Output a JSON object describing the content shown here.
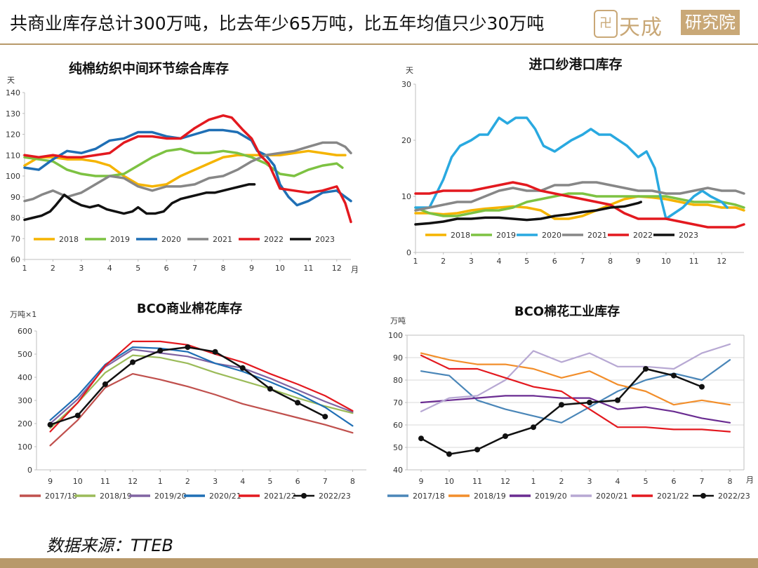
{
  "header": {
    "title": "共商业库存总计300万吨，比去年少65万吨，比五年均值只少30万吨",
    "logo_seal": "卍",
    "logo_text": "天成",
    "logo_box": "研究院"
  },
  "source": "数据来源：TTEB",
  "colors": {
    "accent": "#b8996a",
    "logo": "#c9a877"
  },
  "chart_data": [
    {
      "id": "chart1",
      "type": "line",
      "title": "纯棉纺织中间环节综合库存",
      "ylabel": "天",
      "xlabel": "月",
      "x": [
        1,
        2,
        3,
        4,
        5,
        6,
        7,
        8,
        9,
        10,
        11,
        12
      ],
      "xlim": [
        1,
        12.5
      ],
      "ylim": [
        60,
        140
      ],
      "yticks": [
        60,
        70,
        80,
        90,
        100,
        110,
        120,
        130,
        140
      ],
      "legend": "bottom",
      "series": [
        {
          "name": "2018",
          "color": "#f5b400",
          "x": [
            1,
            1.5,
            2,
            2.5,
            3,
            3.5,
            4,
            4.5,
            5,
            5.5,
            6,
            6.5,
            7,
            7.5,
            8,
            8.5,
            9,
            9.5,
            10,
            10.5,
            11,
            11.5,
            12,
            12.3
          ],
          "values": [
            105,
            109,
            109,
            108,
            108,
            107,
            105,
            100,
            96,
            95,
            96,
            100,
            103,
            106,
            109,
            110,
            110,
            110,
            110,
            111,
            112,
            111,
            110,
            110
          ]
        },
        {
          "name": "2019",
          "color": "#7dc242",
          "x": [
            1,
            1.5,
            2,
            2.5,
            3,
            3.5,
            4,
            4.5,
            5,
            5.5,
            6,
            6.5,
            7,
            7.5,
            8,
            8.5,
            9,
            9.5,
            10,
            10.5,
            11,
            11.5,
            12,
            12.2
          ],
          "values": [
            109,
            108,
            107,
            103,
            101,
            100,
            100,
            101,
            105,
            109,
            112,
            113,
            111,
            111,
            112,
            111,
            109,
            106,
            101,
            100,
            103,
            105,
            106,
            104
          ]
        },
        {
          "name": "2020",
          "color": "#1f6fb5",
          "x": [
            1,
            1.5,
            2,
            2.5,
            3,
            3.5,
            4,
            4.5,
            5,
            5.5,
            6,
            6.5,
            7,
            7.5,
            8,
            8.5,
            9,
            9.2,
            9.5,
            9.8,
            10,
            10.3,
            10.6,
            11,
            11.5,
            12,
            12.5
          ],
          "values": [
            104,
            103,
            108,
            112,
            111,
            113,
            117,
            118,
            121,
            121,
            119,
            118,
            120,
            122,
            122,
            121,
            117,
            112,
            110,
            105,
            96,
            90,
            86,
            88,
            92,
            93,
            88
          ]
        },
        {
          "name": "2021",
          "color": "#878787",
          "x": [
            1,
            1.3,
            1.6,
            2,
            2.5,
            3,
            3.5,
            4,
            4.5,
            5,
            5.5,
            6,
            6.5,
            7,
            7.5,
            8,
            8.5,
            9,
            9.5,
            10,
            10.5,
            11,
            11.5,
            12,
            12.3,
            12.5
          ],
          "values": [
            88,
            89,
            91,
            93,
            90,
            92,
            96,
            100,
            99,
            95,
            93,
            95,
            95,
            96,
            99,
            100,
            103,
            107,
            110,
            111,
            112,
            114,
            116,
            116,
            114,
            111
          ]
        },
        {
          "name": "2022",
          "color": "#e3191f",
          "x": [
            1,
            1.5,
            2,
            2.5,
            3,
            3.5,
            4,
            4.5,
            5,
            5.5,
            6,
            6.5,
            7,
            7.5,
            8,
            8.3,
            8.7,
            9,
            9.3,
            9.6,
            10,
            10.5,
            11,
            11.5,
            12,
            12.3,
            12.5
          ],
          "values": [
            110,
            109,
            110,
            109,
            109,
            110,
            111,
            116,
            119,
            119,
            118,
            118,
            123,
            127,
            129,
            128,
            122,
            118,
            110,
            106,
            94,
            93,
            92,
            93,
            95,
            87,
            78
          ]
        },
        {
          "name": "2023",
          "color": "#111111",
          "x": [
            1,
            1.3,
            1.6,
            1.9,
            2.1,
            2.4,
            2.7,
            3,
            3.3,
            3.6,
            3.9,
            4.2,
            4.5,
            4.8,
            5,
            5.3,
            5.6,
            5.9,
            6.2,
            6.5,
            6.8,
            7.1,
            7.4,
            7.7,
            8,
            8.3,
            8.6,
            8.9,
            9.1
          ],
          "values": [
            79,
            80,
            81,
            83,
            86,
            91,
            88,
            86,
            85,
            86,
            84,
            83,
            82,
            83,
            85,
            82,
            82,
            83,
            87,
            89,
            90,
            91,
            92,
            92,
            93,
            94,
            95,
            96,
            96
          ]
        }
      ]
    },
    {
      "id": "chart2",
      "type": "line",
      "title": "进口纱港口库存",
      "ylabel": "天",
      "xlabel": "",
      "x": [
        1,
        2,
        3,
        4,
        5,
        6,
        7,
        8,
        9,
        10,
        11,
        12
      ],
      "xlim": [
        1,
        12.8
      ],
      "ylim": [
        0,
        30
      ],
      "yticks": [
        0,
        10,
        20,
        30
      ],
      "legend": "bottom",
      "series": [
        {
          "name": "2018",
          "color": "#f5b400",
          "x": [
            1,
            1.5,
            2,
            2.5,
            3,
            3.5,
            4,
            4.5,
            5,
            5.5,
            6,
            6.5,
            7,
            7.5,
            8,
            8.5,
            9,
            9.5,
            10,
            10.5,
            11,
            11.5,
            12,
            12.5,
            12.8
          ],
          "values": [
            7,
            7,
            6.8,
            7,
            7.5,
            7.8,
            8,
            8.2,
            8,
            7.5,
            6,
            6,
            6.5,
            7.5,
            8.5,
            9.5,
            10,
            9.8,
            9.5,
            9,
            8.5,
            8.5,
            8,
            8,
            7.5
          ]
        },
        {
          "name": "2019",
          "color": "#7dc242",
          "x": [
            1,
            1.5,
            2,
            2.5,
            3,
            3.5,
            4,
            4.5,
            5,
            5.5,
            6,
            6.5,
            7,
            7.5,
            8,
            8.5,
            9,
            9.5,
            10,
            10.5,
            11,
            11.5,
            12,
            12.5,
            12.8
          ],
          "values": [
            8,
            7,
            6.5,
            6.5,
            7,
            7.5,
            7.5,
            8,
            9,
            9.5,
            10,
            10.5,
            10.5,
            10,
            10,
            10,
            10,
            10,
            10,
            9.5,
            9,
            9,
            9,
            8.5,
            8
          ]
        },
        {
          "name": "2020",
          "color": "#29a9e0",
          "x": [
            1,
            1.5,
            2,
            2.3,
            2.6,
            3,
            3.3,
            3.6,
            4,
            4.3,
            4.6,
            5,
            5.3,
            5.6,
            6,
            6.3,
            6.6,
            7,
            7.3,
            7.6,
            8,
            8.3,
            8.6,
            9,
            9.3,
            9.6,
            9.8,
            10,
            10.3,
            10.6,
            11,
            11.3,
            11.6,
            12,
            12.2
          ],
          "values": [
            8,
            8,
            13,
            17,
            19,
            20,
            21,
            21,
            24,
            23,
            24,
            24,
            22,
            19,
            18,
            19,
            20,
            21,
            22,
            21,
            21,
            20,
            19,
            17,
            18,
            15,
            10,
            6,
            7,
            8,
            10,
            11,
            10,
            9,
            8
          ]
        },
        {
          "name": "2021",
          "color": "#878787",
          "x": [
            1,
            1.5,
            2,
            2.5,
            3,
            3.5,
            4,
            4.5,
            5,
            5.5,
            6,
            6.5,
            7,
            7.5,
            8,
            8.5,
            9,
            9.5,
            10,
            10.5,
            11,
            11.5,
            12,
            12.5,
            12.8
          ],
          "values": [
            7.5,
            8,
            8.5,
            9,
            9,
            10,
            11,
            11.5,
            11,
            11,
            12,
            12,
            12.5,
            12.5,
            12,
            11.5,
            11,
            11,
            10.5,
            10.5,
            11,
            11.5,
            11,
            11,
            10.5
          ]
        },
        {
          "name": "2022",
          "color": "#e3191f",
          "x": [
            1,
            1.5,
            2,
            2.5,
            3,
            3.5,
            4,
            4.5,
            5,
            5.5,
            6,
            6.5,
            7,
            7.5,
            8,
            8.5,
            9,
            9.5,
            10,
            10.5,
            11,
            11.5,
            12,
            12.5,
            12.8
          ],
          "values": [
            10.5,
            10.5,
            11,
            11,
            11,
            11.5,
            12,
            12.5,
            12,
            11,
            10.5,
            10,
            9.5,
            9,
            8.5,
            7,
            6,
            6,
            6,
            5.5,
            5,
            4.5,
            4.5,
            4.5,
            5
          ]
        },
        {
          "name": "2023",
          "color": "#111111",
          "x": [
            1,
            1.5,
            2,
            2.5,
            3,
            3.5,
            4,
            4.5,
            5,
            5.5,
            6,
            6.5,
            7,
            7.5,
            8,
            8.5,
            9,
            9.1
          ],
          "values": [
            5,
            5.2,
            5.5,
            6,
            6,
            6.2,
            6.2,
            6,
            5.8,
            6,
            6.5,
            6.8,
            7.2,
            7.5,
            8,
            8.2,
            8.8,
            9
          ]
        }
      ]
    },
    {
      "id": "chart3",
      "type": "line",
      "title": "BCO商业棉花库存",
      "ylabel": "万吨×1",
      "xlabel": "",
      "categories": [
        "9",
        "10",
        "11",
        "12",
        "1",
        "2",
        "3",
        "4",
        "5",
        "6",
        "7",
        "8"
      ],
      "ylim": [
        0,
        600
      ],
      "yticks": [
        0,
        100,
        200,
        300,
        400,
        500,
        600
      ],
      "legend": "bottom",
      "series": [
        {
          "name": "2017/18",
          "color": "#c0504d",
          "values": [
            105,
            215,
            355,
            415,
            390,
            360,
            325,
            285,
            255,
            225,
            195,
            160
          ],
          "markers": false
        },
        {
          "name": "2018/19",
          "color": "#9bbb59",
          "values": [
            180,
            290,
            420,
            495,
            485,
            460,
            420,
            385,
            350,
            310,
            275,
            245
          ],
          "markers": false
        },
        {
          "name": "2019/20",
          "color": "#8064a2",
          "values": [
            200,
            305,
            445,
            520,
            505,
            490,
            460,
            440,
            395,
            345,
            295,
            250
          ],
          "markers": false
        },
        {
          "name": "2020/21",
          "color": "#1f6fb5",
          "values": [
            215,
            320,
            455,
            530,
            525,
            510,
            460,
            425,
            380,
            330,
            270,
            190
          ],
          "markers": false
        },
        {
          "name": "2021/22",
          "color": "#e3191f",
          "values": [
            165,
            290,
            450,
            555,
            555,
            540,
            500,
            465,
            415,
            370,
            320,
            255
          ],
          "markers": false
        },
        {
          "name": "2022/23",
          "color": "#111111",
          "values": [
            195,
            235,
            370,
            465,
            515,
            530,
            510,
            440,
            350,
            290,
            230,
            null
          ],
          "markers": true
        }
      ]
    },
    {
      "id": "chart4",
      "type": "line",
      "title": "BCO棉花工业库存",
      "ylabel": "万吨",
      "xlabel": "月",
      "categories": [
        "9",
        "10",
        "11",
        "12",
        "1",
        "2",
        "3",
        "4",
        "5",
        "6",
        "7",
        "8"
      ],
      "ylim": [
        40,
        100
      ],
      "yticks": [
        40,
        50,
        60,
        70,
        80,
        90,
        100
      ],
      "legend": "bottom",
      "series": [
        {
          "name": "2017/18",
          "color": "#4a86b8",
          "values": [
            84,
            82,
            71,
            67,
            64,
            61,
            68,
            75,
            80,
            83,
            80,
            89
          ],
          "markers": false
        },
        {
          "name": "2018/19",
          "color": "#f28e2b",
          "values": [
            92,
            89,
            87,
            87,
            85,
            81,
            84,
            78,
            75,
            69,
            71,
            69
          ],
          "markers": false
        },
        {
          "name": "2019/20",
          "color": "#6a2c91",
          "values": [
            70,
            71,
            72,
            73,
            73,
            72,
            72,
            67,
            68,
            66,
            63,
            61
          ],
          "markers": false
        },
        {
          "name": "2020/21",
          "color": "#b7a8d3",
          "values": [
            66,
            72,
            73,
            80,
            93,
            88,
            92,
            86,
            86,
            85,
            92,
            96
          ],
          "markers": false
        },
        {
          "name": "2021/22",
          "color": "#e3191f",
          "values": [
            91,
            85,
            85,
            81,
            77,
            75,
            67,
            59,
            59,
            58,
            58,
            57
          ],
          "markers": false
        },
        {
          "name": "2022/23",
          "color": "#111111",
          "values": [
            54,
            47,
            49,
            55,
            59,
            69,
            70,
            71,
            85,
            82,
            77,
            null
          ],
          "markers": true
        }
      ]
    }
  ]
}
